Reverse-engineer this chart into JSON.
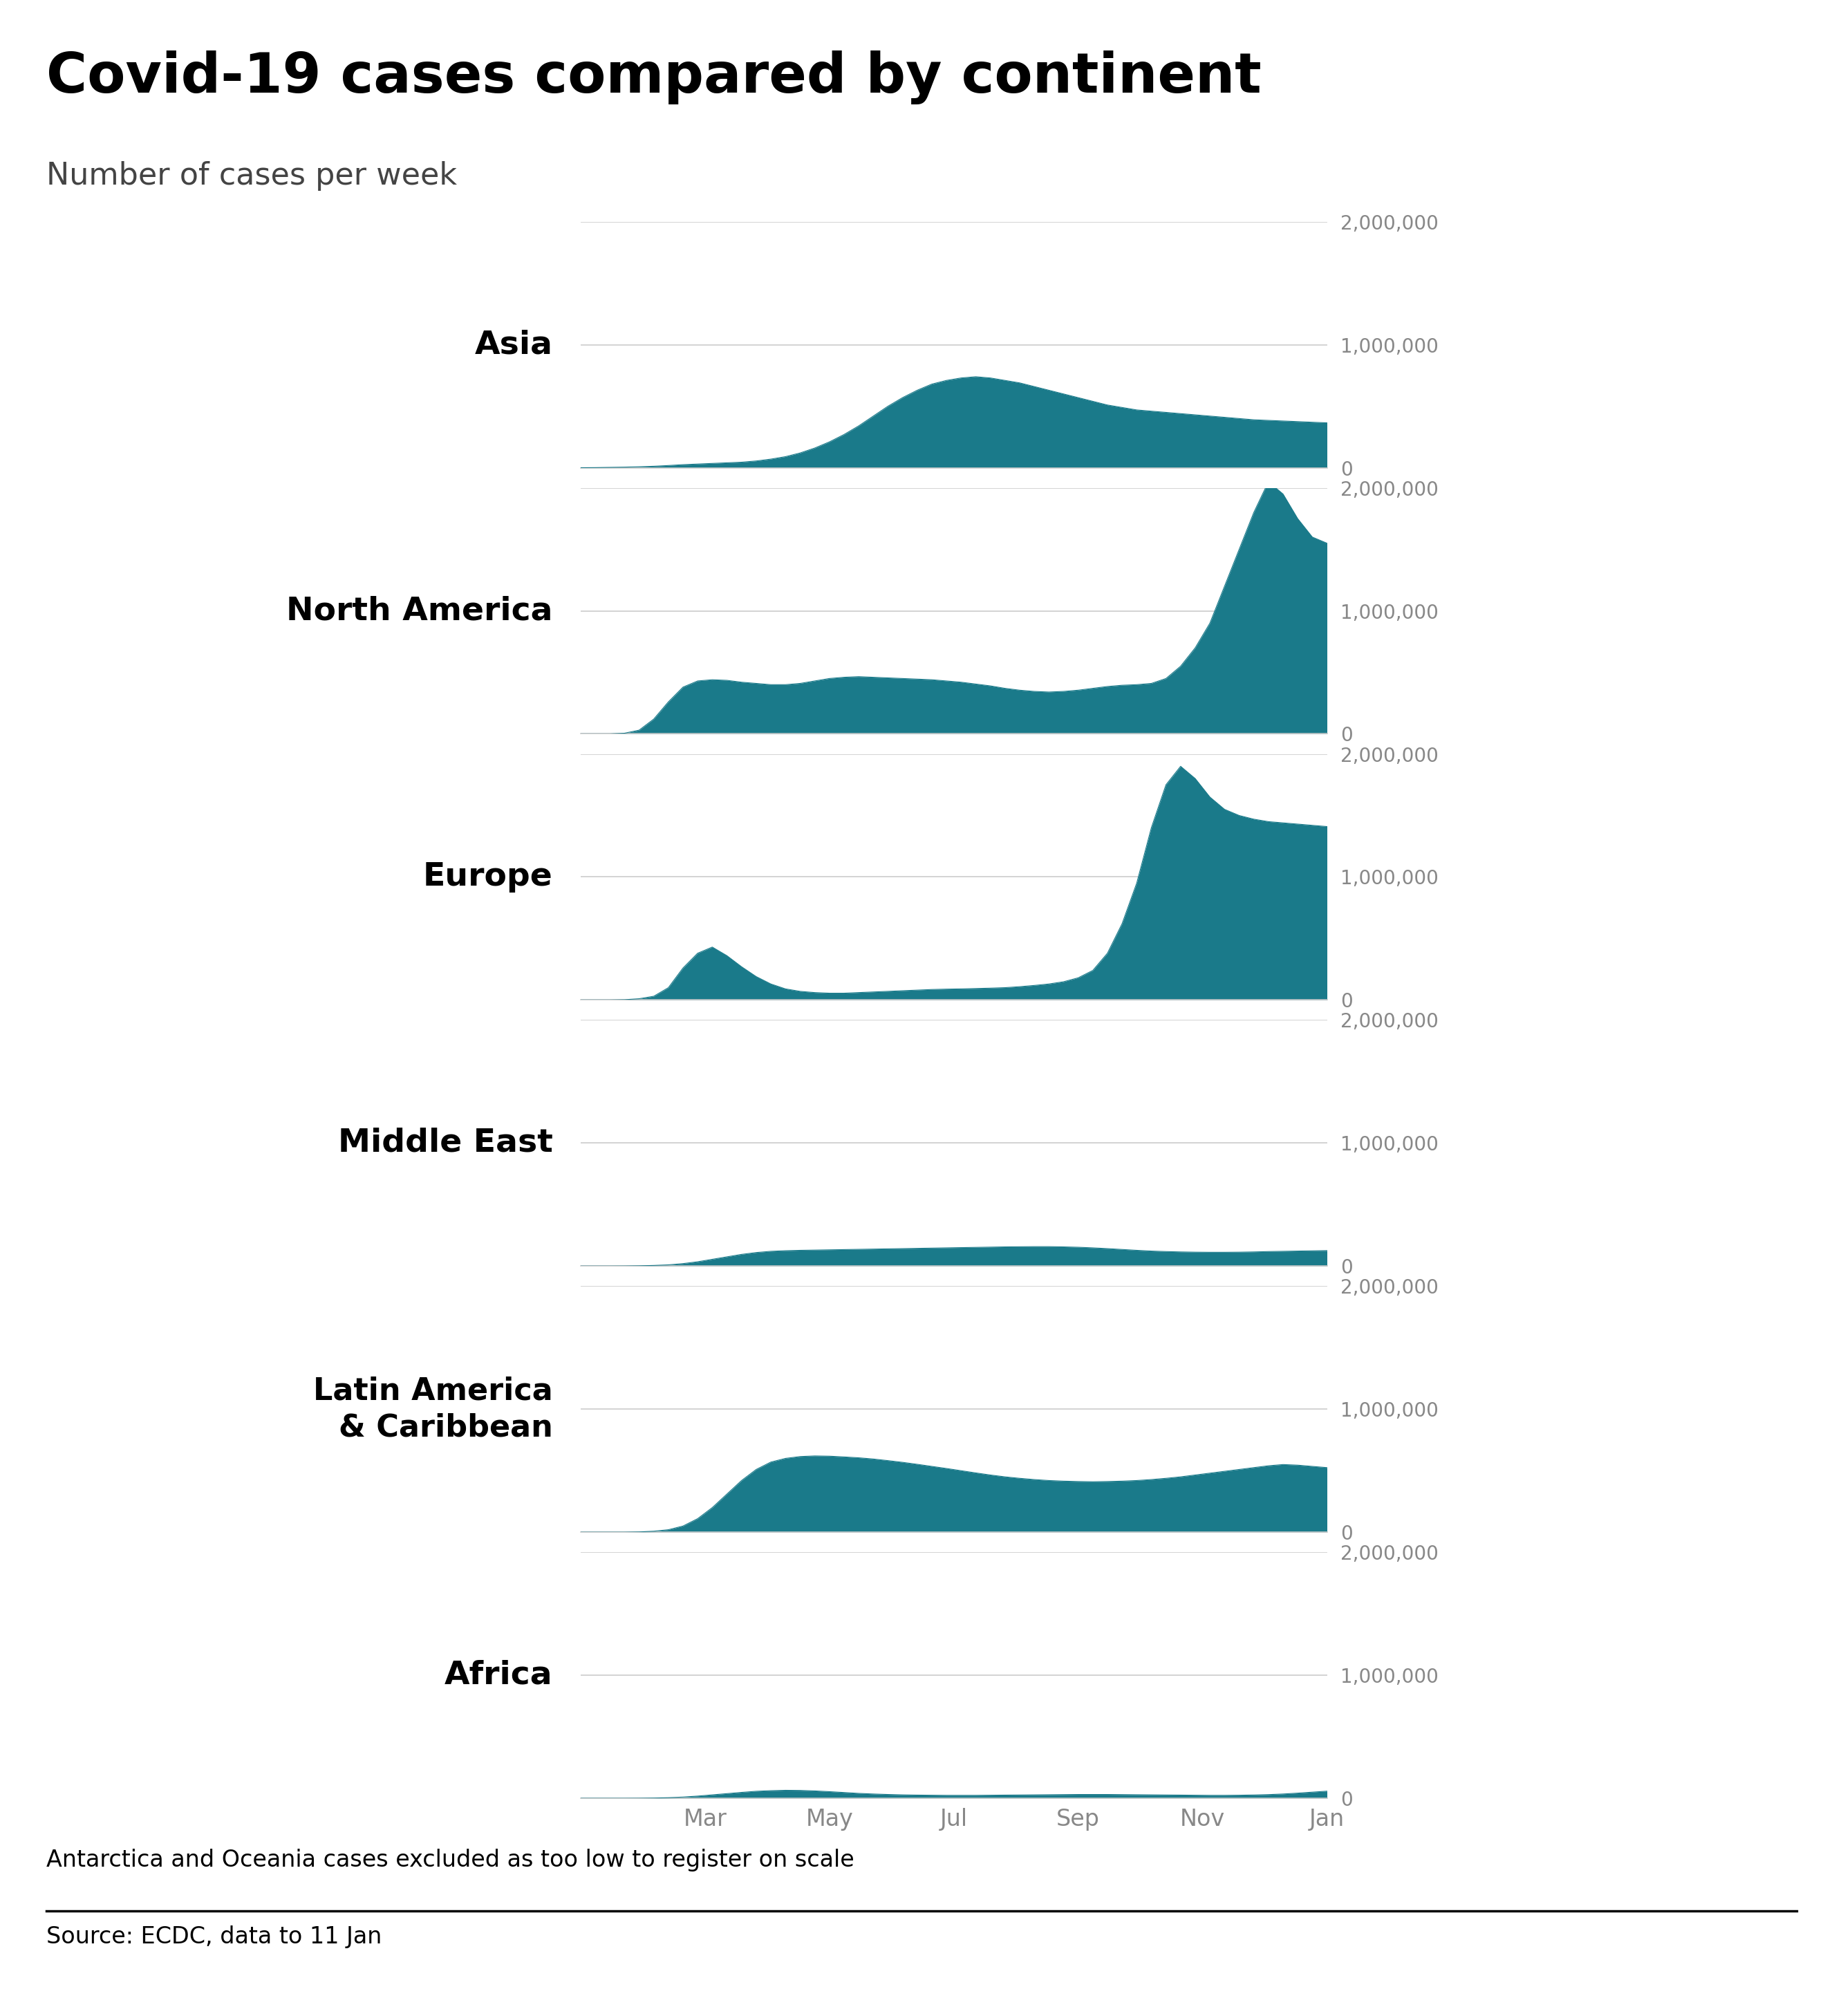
{
  "title": "Covid-19 cases compared by continent",
  "subtitle": "Number of cases per week",
  "footer_note": "Antarctica and Oceania cases excluded as too low to register on scale",
  "source": "Source: ECDC, data to 11 Jan",
  "fill_color": "#1a7a8a",
  "background_color": "#ffffff",
  "text_color": "#000000",
  "grid_color": "#cccccc",
  "ytick_color": "#888888",
  "xtick_color": "#888888",
  "continents": [
    "Asia",
    "North America",
    "Europe",
    "Middle East",
    "Latin America\n& Caribbean",
    "Africa"
  ],
  "x_tick_labels": [
    "Mar",
    "May",
    "Jul",
    "Sep",
    "Nov",
    "Jan"
  ],
  "x_tick_positions": [
    2,
    4,
    6,
    8,
    10,
    12
  ],
  "ymax": 2000000,
  "yticks": [
    0,
    1000000,
    2000000
  ],
  "ytick_labels": [
    "0",
    "1,000,000",
    "2,000,000"
  ],
  "data": {
    "Asia": [
      0,
      1000,
      3000,
      5000,
      8000,
      12000,
      18000,
      25000,
      30000,
      35000,
      40000,
      45000,
      55000,
      70000,
      90000,
      120000,
      160000,
      210000,
      270000,
      340000,
      420000,
      500000,
      570000,
      630000,
      680000,
      710000,
      730000,
      740000,
      730000,
      710000,
      690000,
      660000,
      630000,
      600000,
      570000,
      540000,
      510000,
      490000,
      470000,
      460000,
      450000,
      440000,
      430000,
      420000,
      410000,
      400000,
      390000,
      385000,
      380000,
      375000,
      370000,
      365000
    ],
    "North America": [
      0,
      0,
      0,
      5000,
      30000,
      120000,
      260000,
      380000,
      430000,
      440000,
      435000,
      420000,
      410000,
      400000,
      400000,
      410000,
      430000,
      450000,
      460000,
      465000,
      460000,
      455000,
      450000,
      445000,
      440000,
      430000,
      420000,
      405000,
      390000,
      370000,
      355000,
      345000,
      340000,
      345000,
      355000,
      370000,
      385000,
      395000,
      400000,
      410000,
      450000,
      550000,
      700000,
      900000,
      1200000,
      1500000,
      1800000,
      2050000,
      1950000,
      1750000,
      1600000,
      1550000
    ],
    "Europe": [
      0,
      0,
      0,
      2000,
      10000,
      30000,
      100000,
      260000,
      380000,
      430000,
      360000,
      270000,
      190000,
      130000,
      90000,
      70000,
      60000,
      55000,
      55000,
      60000,
      65000,
      70000,
      75000,
      80000,
      85000,
      88000,
      90000,
      93000,
      96000,
      100000,
      108000,
      118000,
      130000,
      148000,
      180000,
      240000,
      380000,
      620000,
      950000,
      1400000,
      1750000,
      1900000,
      1800000,
      1650000,
      1550000,
      1500000,
      1470000,
      1450000,
      1440000,
      1430000,
      1420000,
      1410000
    ],
    "Middle East": [
      0,
      0,
      0,
      500,
      2000,
      5000,
      10000,
      20000,
      35000,
      55000,
      75000,
      95000,
      110000,
      120000,
      125000,
      128000,
      130000,
      132000,
      134000,
      136000,
      138000,
      140000,
      142000,
      144000,
      146000,
      148000,
      150000,
      152000,
      154000,
      156000,
      157000,
      158000,
      158000,
      156000,
      153000,
      148000,
      142000,
      135000,
      128000,
      122000,
      118000,
      115000,
      113000,
      112000,
      112000,
      113000,
      115000,
      118000,
      120000,
      122000,
      124000,
      126000
    ],
    "Latin America\n& Caribbean": [
      0,
      0,
      0,
      0,
      2000,
      8000,
      20000,
      50000,
      110000,
      200000,
      310000,
      420000,
      510000,
      570000,
      600000,
      615000,
      620000,
      618000,
      612000,
      605000,
      595000,
      582000,
      568000,
      552000,
      535000,
      518000,
      500000,
      482000,
      465000,
      450000,
      438000,
      428000,
      420000,
      415000,
      412000,
      410000,
      412000,
      415000,
      420000,
      428000,
      438000,
      450000,
      465000,
      480000,
      495000,
      510000,
      525000,
      540000,
      550000,
      545000,
      535000,
      525000
    ],
    "Africa": [
      0,
      0,
      0,
      0,
      500,
      2000,
      5000,
      10000,
      18000,
      28000,
      38000,
      48000,
      57000,
      62000,
      65000,
      64000,
      60000,
      54000,
      47000,
      40000,
      35000,
      31000,
      28000,
      26000,
      25000,
      24000,
      24000,
      24000,
      25000,
      26000,
      27000,
      28000,
      29000,
      30000,
      31000,
      31000,
      31000,
      30000,
      29000,
      28000,
      27000,
      26000,
      25000,
      24000,
      24000,
      25000,
      27000,
      30000,
      35000,
      42000,
      50000,
      58000
    ]
  }
}
